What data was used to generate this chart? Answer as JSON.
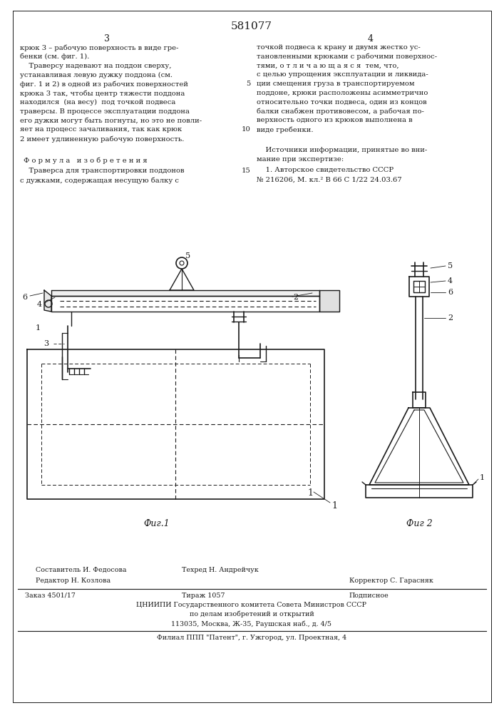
{
  "patent_number": "581077",
  "page_left": "3",
  "page_right": "4",
  "text_col1_lines": [
    "крюк 3 – рабочую поверхность в виде гре-",
    "бенки (см. фиг. 1).",
    "    Траверсу надевают на поддон сверху,",
    "устанавливая левую дужку поддона (см.",
    "фиг. 1 и 2) в одной из рабочих поверхностей",
    "крюка 3 так, чтобы центр тяжести поддона",
    "находился  (на весу)  под точкой подвеса",
    "траверсы. В процессе эксплуатации поддона",
    "его дужки могут быть погнуты, но это не повли-",
    "яет на процесс зачаливания, так как крюк",
    "2 имеет удлиненную рабочую поверхность."
  ],
  "formula_header": "Ф о р м у л а   и з о б р е т е н и я",
  "formula_lines": [
    "    Траверса для транспортировки поддонов",
    "с дужками, содержащая несущую балку с"
  ],
  "line_number_5": "5",
  "line_number_10": "10",
  "line_number_15": "15",
  "text_col2_lines": [
    "точкой подвеса к крану и двумя жестко ус-",
    "тановленными крюками с рабочими поверхнос-",
    "тями, о т л и ч а ю щ а я с я  тем, что,",
    "с целью упрощения эксплуатации и ликвида-",
    "ции смещения груза в транспортируемом",
    "поддоне, крюки расположены асимметрично",
    "относительно точки подвеса, один из концов",
    "балки снабжен противовесом, а рабочая по-",
    "верхность одного из крюков выполнена в",
    "виде гребенки."
  ],
  "sources_header": "    Источники информации, принятые во вни-",
  "sources_text": "мание при экспертизе:",
  "source1": "    1. Авторское свидетельство СССР",
  "source1b": "№ 216206, М. кл.² В 66 С 1/22 24.03.67",
  "fig1_label": "Фиг.1",
  "fig2_label": "Фиг 2",
  "editor_label": "Редактор Н. Козлова",
  "composer_label": "Составитель И. Федосова",
  "techred_label": "Техред Н. Андрейчук",
  "corrector_label": "Корректор С. Гарасняк",
  "order_label": "Заказ 4501/17",
  "tirazh_label": "Тираж 1057",
  "podpisnoe_label": "Подписное",
  "tsniip_line1": "ЦНИИПИ Государственного комитета Совета Министров СССР",
  "tsniip_line2": "по делам изобретений и открытий",
  "tsniip_line3": "113035, Москва, Ж-35, Раушская наб., д. 4/5",
  "filial_line": "Филиал ППП \"Патент\", г. Ужгород, ул. Проектная, 4",
  "bg_color": "#ffffff",
  "text_color": "#1a1a1a",
  "line_color": "#1a1a1a"
}
